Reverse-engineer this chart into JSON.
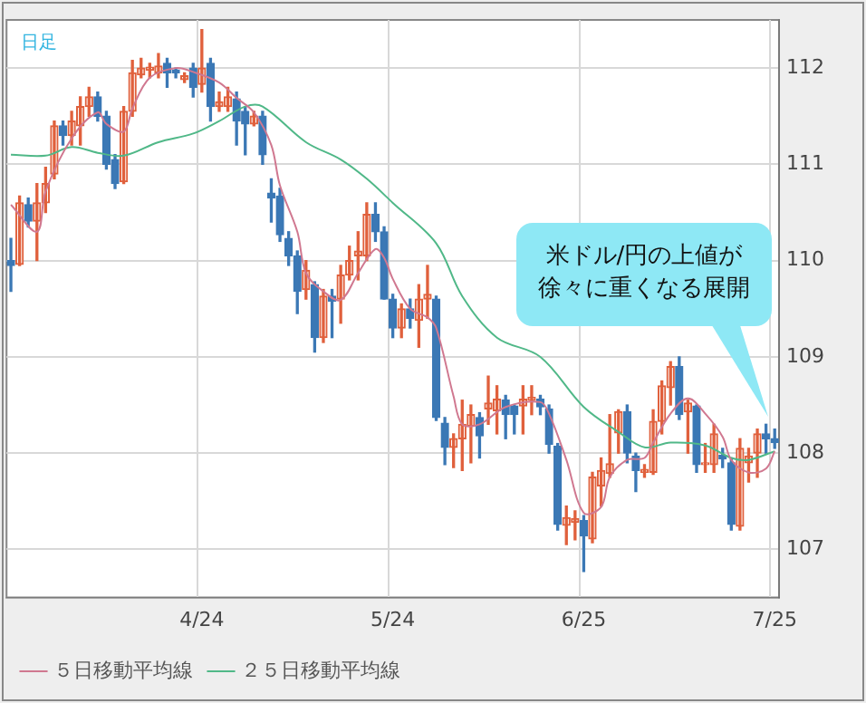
{
  "chart_data": {
    "type": "candlestick",
    "title": "日足",
    "categories": [
      null,
      null,
      null,
      null,
      null,
      null,
      null,
      null,
      null,
      null,
      null,
      null,
      null,
      null,
      null,
      null,
      null,
      null,
      null,
      null,
      null,
      null,
      "4/24",
      null,
      null,
      null,
      null,
      null,
      null,
      null,
      null,
      null,
      null,
      null,
      null,
      null,
      null,
      null,
      null,
      null,
      null,
      null,
      null,
      null,
      "5/24",
      null,
      null,
      null,
      null,
      null,
      null,
      null,
      null,
      null,
      null,
      null,
      null,
      null,
      null,
      null,
      null,
      null,
      null,
      null,
      null,
      null,
      "6/25",
      null,
      null,
      null,
      null,
      null,
      null,
      null,
      null,
      null,
      null,
      null,
      null,
      null,
      null,
      null,
      null,
      null,
      null,
      null,
      null,
      null,
      "7/25"
    ],
    "ohlc": [
      [
        110.0,
        110.23,
        109.68,
        109.95
      ],
      [
        109.96,
        110.67,
        109.95,
        110.6
      ],
      [
        110.58,
        110.65,
        110.35,
        110.41
      ],
      [
        110.41,
        110.8,
        110.0,
        110.6
      ],
      [
        110.6,
        110.97,
        110.5,
        110.8
      ],
      [
        110.9,
        111.45,
        110.85,
        111.4
      ],
      [
        111.4,
        111.45,
        111.2,
        111.3
      ],
      [
        111.3,
        111.55,
        111.2,
        111.45
      ],
      [
        111.4,
        111.7,
        111.2,
        111.6
      ],
      [
        111.6,
        111.8,
        111.5,
        111.7
      ],
      [
        111.7,
        111.75,
        111.45,
        111.5
      ],
      [
        111.5,
        111.55,
        110.95,
        111.0
      ],
      [
        111.05,
        111.1,
        110.75,
        110.8
      ],
      [
        110.82,
        111.6,
        110.8,
        111.55
      ],
      [
        111.55,
        112.08,
        111.5,
        111.95
      ],
      [
        111.93,
        112.1,
        111.9,
        112.0
      ],
      [
        111.98,
        112.05,
        111.9,
        112.01
      ],
      [
        111.95,
        112.15,
        111.9,
        112.02
      ],
      [
        112.05,
        112.1,
        111.8,
        111.95
      ],
      [
        111.98,
        112.0,
        111.9,
        111.95
      ],
      [
        111.88,
        111.95,
        111.85,
        111.92
      ],
      [
        112.0,
        112.05,
        111.7,
        111.8
      ],
      [
        111.83,
        112.4,
        111.75,
        112.0
      ],
      [
        112.05,
        112.1,
        111.45,
        111.6
      ],
      [
        111.6,
        111.75,
        111.55,
        111.65
      ],
      [
        111.6,
        111.8,
        111.55,
        111.7
      ],
      [
        111.68,
        111.75,
        111.2,
        111.45
      ],
      [
        111.55,
        111.6,
        111.1,
        111.42
      ],
      [
        111.42,
        111.55,
        111.4,
        111.5
      ],
      [
        111.5,
        111.55,
        111.0,
        111.1
      ],
      [
        110.7,
        110.85,
        110.4,
        110.65
      ],
      [
        110.67,
        110.75,
        110.2,
        110.27
      ],
      [
        110.23,
        110.3,
        109.95,
        110.05
      ],
      [
        110.05,
        110.1,
        109.45,
        109.68
      ],
      [
        109.7,
        110.0,
        109.6,
        109.9
      ],
      [
        109.75,
        109.78,
        109.05,
        109.2
      ],
      [
        109.2,
        109.7,
        109.15,
        109.63
      ],
      [
        109.63,
        109.7,
        109.2,
        109.58
      ],
      [
        109.6,
        109.95,
        109.35,
        109.85
      ],
      [
        109.85,
        110.15,
        109.8,
        110.0
      ],
      [
        110.05,
        110.3,
        109.8,
        110.1
      ],
      [
        110.05,
        110.6,
        110.0,
        110.48
      ],
      [
        110.48,
        110.6,
        110.2,
        110.3
      ],
      [
        110.3,
        110.35,
        109.6,
        109.6
      ],
      [
        109.6,
        109.65,
        109.2,
        109.3
      ],
      [
        109.3,
        109.55,
        109.2,
        109.5
      ],
      [
        109.5,
        109.6,
        109.3,
        109.4
      ],
      [
        109.38,
        109.75,
        109.1,
        109.6
      ],
      [
        109.6,
        109.95,
        109.4,
        109.65
      ],
      [
        109.6,
        109.63,
        108.34,
        108.37
      ],
      [
        108.31,
        108.37,
        107.88,
        108.06
      ],
      [
        108.06,
        108.2,
        107.85,
        108.15
      ],
      [
        108.15,
        108.55,
        107.82,
        108.3
      ],
      [
        108.28,
        108.5,
        107.9,
        108.4
      ],
      [
        108.37,
        108.42,
        107.95,
        108.18
      ],
      [
        108.46,
        108.8,
        108.3,
        108.52
      ],
      [
        108.44,
        108.7,
        108.2,
        108.56
      ],
      [
        108.55,
        108.6,
        108.15,
        108.4
      ],
      [
        108.49,
        108.5,
        108.2,
        108.4
      ],
      [
        108.49,
        108.7,
        108.2,
        108.56
      ],
      [
        108.55,
        108.7,
        108.4,
        108.58
      ],
      [
        108.56,
        108.6,
        108.4,
        108.48
      ],
      [
        108.46,
        108.5,
        108.0,
        108.09
      ],
      [
        108.07,
        108.1,
        107.2,
        107.26
      ],
      [
        107.25,
        107.45,
        107.05,
        107.33
      ],
      [
        107.28,
        107.4,
        107.1,
        107.32
      ],
      [
        107.3,
        107.35,
        106.77,
        107.14
      ],
      [
        107.11,
        107.8,
        107.07,
        107.75
      ],
      [
        107.66,
        107.95,
        107.45,
        107.82
      ],
      [
        107.79,
        108.4,
        107.75,
        107.89
      ],
      [
        108.21,
        108.45,
        108.0,
        108.43
      ],
      [
        108.43,
        108.5,
        107.9,
        108.0
      ],
      [
        107.97,
        108.0,
        107.6,
        107.82
      ],
      [
        107.8,
        107.88,
        107.75,
        107.83
      ],
      [
        107.8,
        108.45,
        107.78,
        108.33
      ],
      [
        108.33,
        108.75,
        108.2,
        108.7
      ],
      [
        108.68,
        108.95,
        108.5,
        108.9
      ],
      [
        108.9,
        109.0,
        108.35,
        108.4
      ],
      [
        108.43,
        108.55,
        108.0,
        108.52
      ],
      [
        108.49,
        108.5,
        107.8,
        107.88
      ],
      [
        107.88,
        108.1,
        107.8,
        107.9
      ],
      [
        107.88,
        108.3,
        107.8,
        108.2
      ],
      [
        107.98,
        108.05,
        107.85,
        107.94
      ],
      [
        107.9,
        107.95,
        107.2,
        107.26
      ],
      [
        107.24,
        108.15,
        107.2,
        108.05
      ],
      [
        107.9,
        108.05,
        107.7,
        107.97
      ],
      [
        108.0,
        108.25,
        107.75,
        108.2
      ],
      [
        108.2,
        108.3,
        108.0,
        108.15
      ],
      [
        108.15,
        108.25,
        108.05,
        108.11
      ]
    ],
    "series": [
      {
        "name": "５日移動平均線",
        "type": "line",
        "color": "#d07890",
        "values": [
          110.58,
          null,
          null,
          110.3,
          110.72,
          null,
          null,
          111.27,
          null,
          null,
          111.54,
          111.42,
          null,
          111.34,
          111.58,
          null,
          111.9,
          null,
          null,
          112.0,
          null,
          111.96,
          null,
          null,
          111.85,
          null,
          111.69,
          null,
          111.54,
          null,
          111.2,
          110.78,
          null,
          110.3,
          109.87,
          null,
          109.68,
          null,
          109.59,
          null,
          109.87,
          null,
          110.12,
          110.03,
          109.81,
          null,
          109.5,
          null,
          109.41,
          109.3,
          null,
          108.59,
          108.3,
          null,
          108.3,
          null,
          null,
          108.48,
          null,
          null,
          null,
          108.53,
          108.41,
          null,
          107.93,
          null,
          107.38,
          null,
          107.44,
          107.75,
          null,
          107.93,
          null,
          107.95,
          108.11,
          null,
          108.41,
          null,
          108.57,
          null,
          108.41,
          null,
          108.17,
          107.93,
          null,
          107.8,
          null,
          107.84,
          108.02
        ]
      },
      {
        "name": "２５日移動平均線",
        "type": "line",
        "color": "#50b888",
        "values": [
          111.1,
          null,
          null,
          null,
          111.09,
          null,
          null,
          111.18,
          null,
          null,
          111.12,
          null,
          null,
          111.09,
          null,
          null,
          null,
          111.23,
          null,
          null,
          null,
          111.32,
          null,
          null,
          111.45,
          null,
          null,
          111.6,
          null,
          111.6,
          null,
          null,
          null,
          null,
          111.23,
          null,
          null,
          null,
          111.05,
          null,
          null,
          110.85,
          null,
          null,
          110.6,
          null,
          null,
          null,
          null,
          110.18,
          null,
          null,
          109.63,
          null,
          null,
          null,
          109.2,
          null,
          null,
          null,
          null,
          109.0,
          null,
          null,
          null,
          null,
          108.48,
          null,
          null,
          null,
          108.22,
          null,
          null,
          108.06,
          null,
          null,
          108.11,
          null,
          null,
          null,
          108.08,
          null,
          null,
          107.95,
          null,
          107.93,
          null,
          null,
          108.02
        ]
      }
    ],
    "ylim": [
      106.5,
      112.5
    ],
    "yticks": [
      107,
      108,
      109,
      110,
      111,
      112
    ],
    "grid": true,
    "legend": "bottom",
    "annotations": [
      "米ドル/円の上値が徐々に重くなる展開"
    ]
  }
}
